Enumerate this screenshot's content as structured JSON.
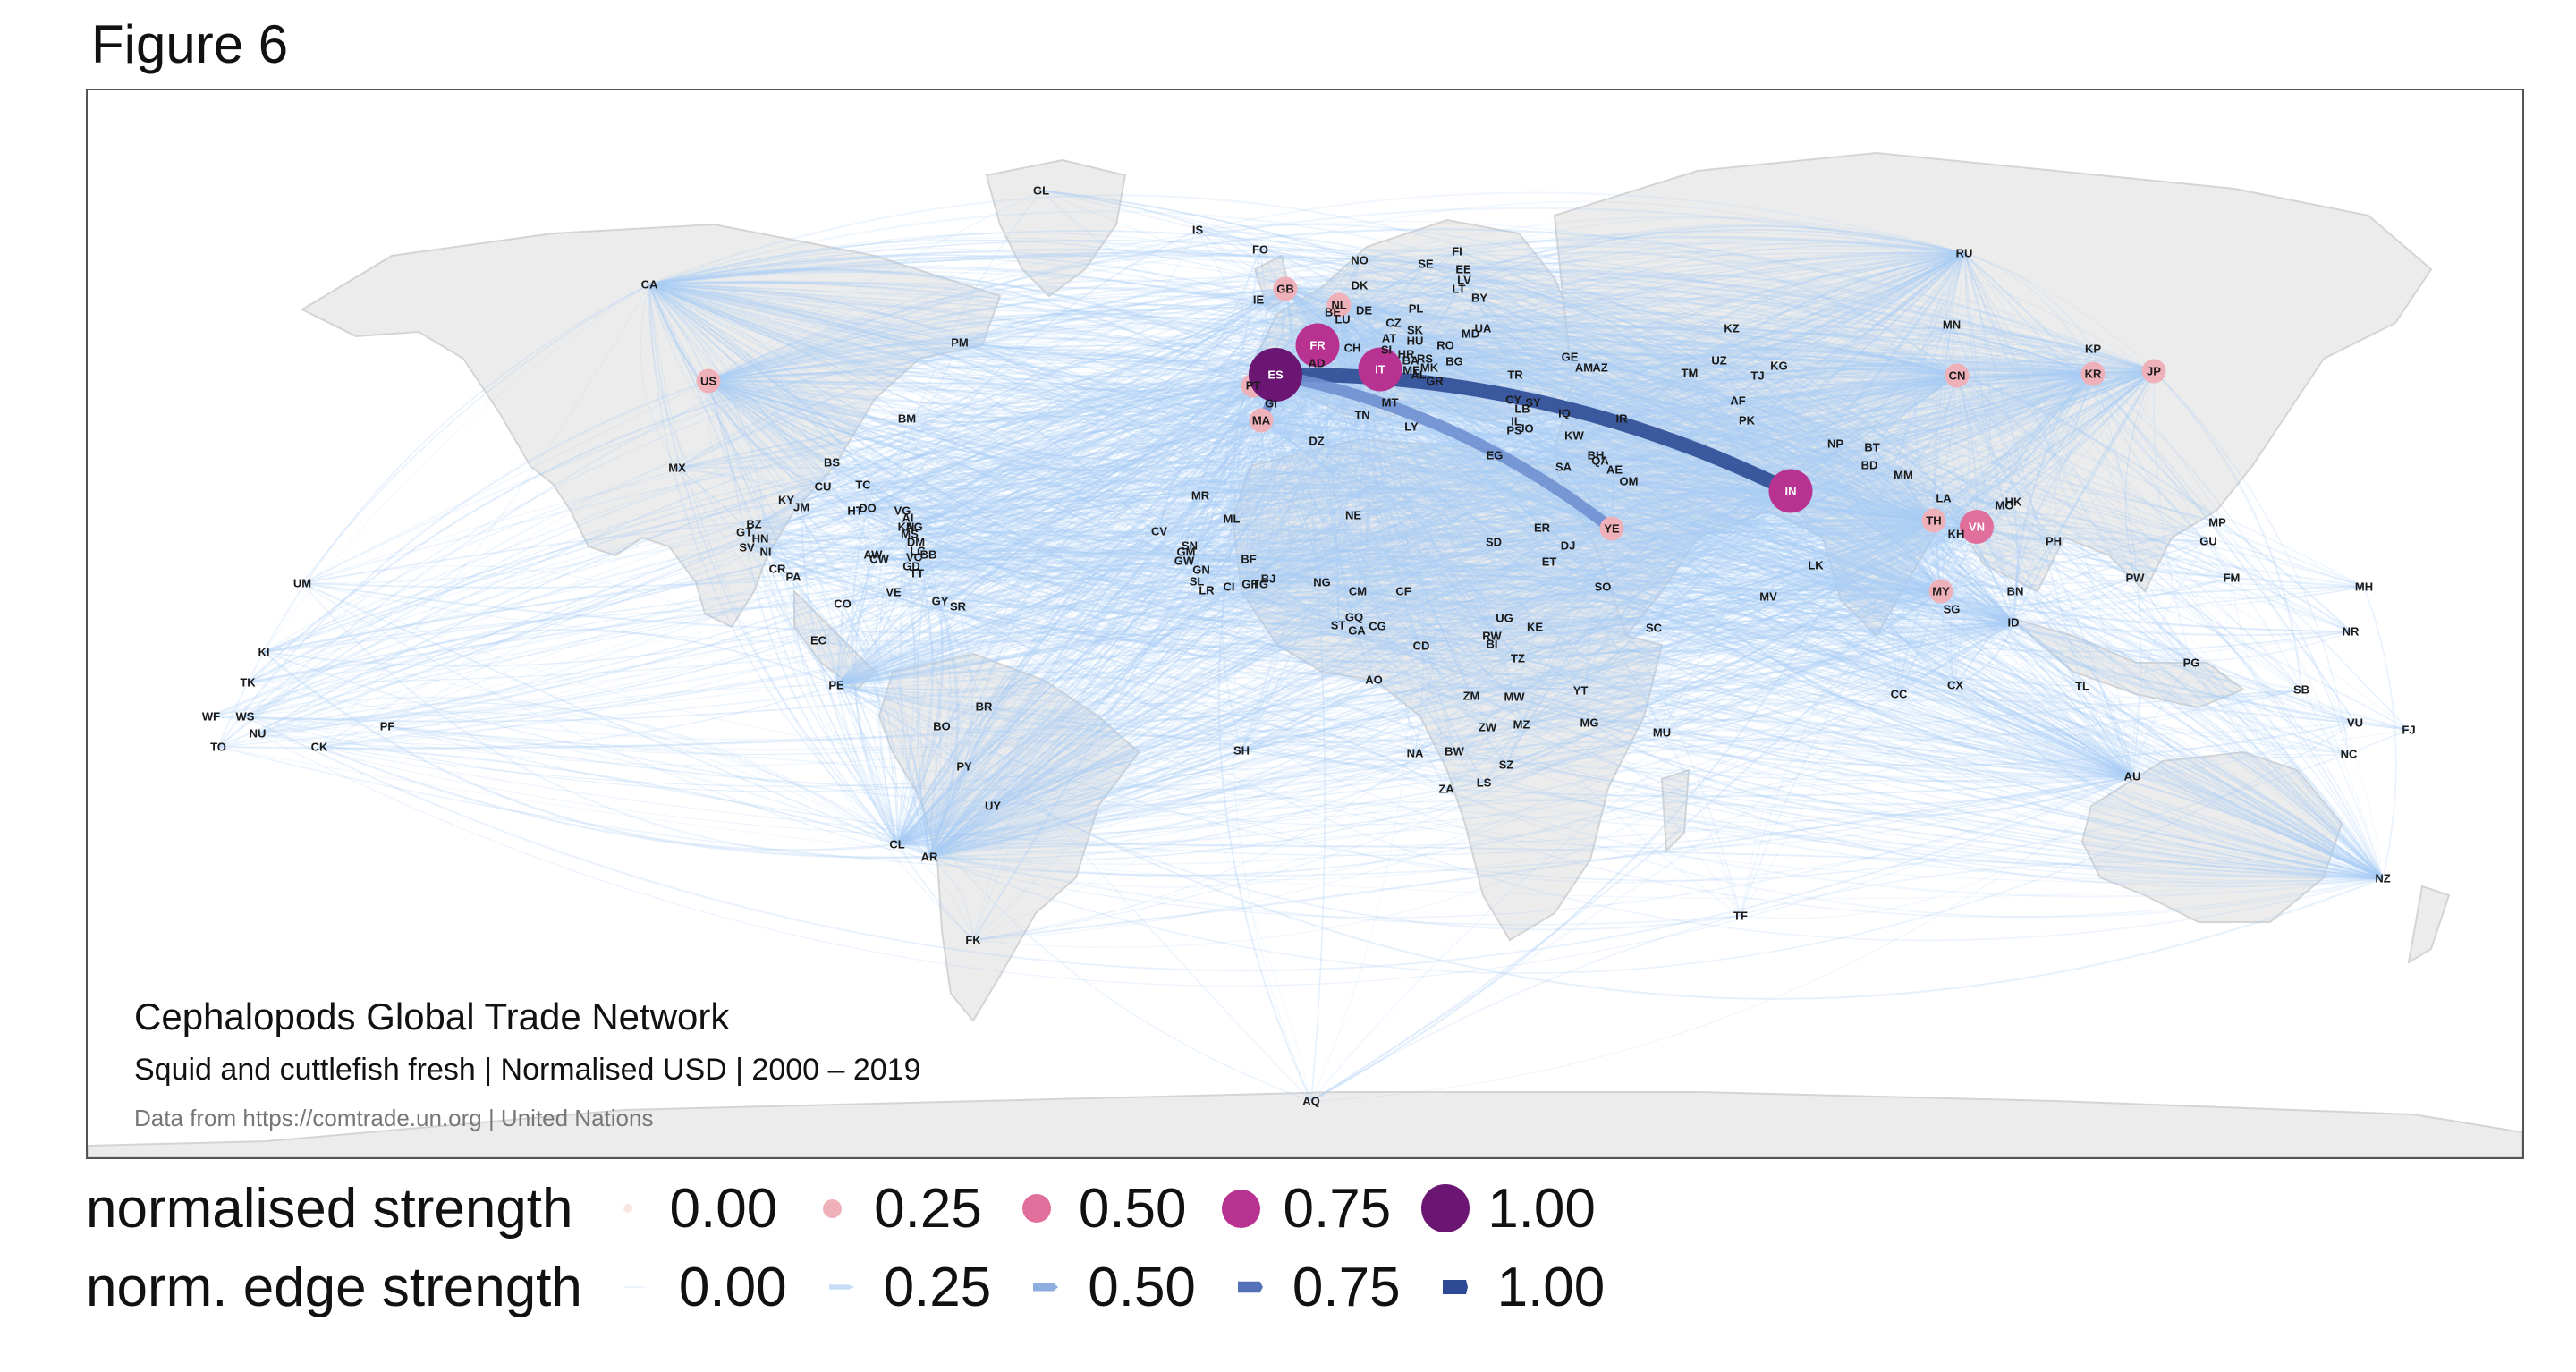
{
  "figure_label": "Figure 6",
  "map": {
    "title": "Cephalopods Global Trade Network",
    "subtitle": "Squid and cuttlefish fresh | Normalised USD | 2000 – 2019",
    "source": "Data from https://comtrade.un.org | United Nations"
  },
  "colors": {
    "edge_light": "#a9cdf6",
    "edge_strong": "#2c4a94",
    "node_0": "#fbe7e0",
    "node_025": "#efb1b9",
    "node_050": "#e06f9c",
    "node_075": "#b83391",
    "node_100": "#6a1672"
  },
  "legend": {
    "node_title": "normalised strength",
    "edge_title": "norm. edge strength",
    "node_keys": [
      {
        "label": "0.00",
        "value": 0.0,
        "color": "#fbe7e0"
      },
      {
        "label": "0.25",
        "value": 0.25,
        "color": "#efb1b9"
      },
      {
        "label": "0.50",
        "value": 0.5,
        "color": "#e06f9c"
      },
      {
        "label": "0.75",
        "value": 0.75,
        "color": "#b83391"
      },
      {
        "label": "1.00",
        "value": 1.0,
        "color": "#6a1672"
      }
    ],
    "edge_keys": [
      {
        "label": "0.00",
        "value": 0.0,
        "color": "#eef5fd"
      },
      {
        "label": "0.25",
        "value": 0.25,
        "color": "#c6ddf5"
      },
      {
        "label": "0.50",
        "value": 0.5,
        "color": "#8eaee0"
      },
      {
        "label": "0.75",
        "value": 0.75,
        "color": "#5470b6"
      },
      {
        "label": "1.00",
        "value": 1.0,
        "color": "#2c4a94"
      }
    ]
  },
  "highlighted_nodes": [
    {
      "code": "ES",
      "strength": 1.0
    },
    {
      "code": "IN",
      "strength": 0.75
    },
    {
      "code": "IT",
      "strength": 0.75
    },
    {
      "code": "FR",
      "strength": 0.75
    },
    {
      "code": "VN",
      "strength": 0.5
    },
    {
      "code": "TH",
      "strength": 0.25
    },
    {
      "code": "CN",
      "strength": 0.25
    },
    {
      "code": "JP",
      "strength": 0.25
    },
    {
      "code": "YE",
      "strength": 0.25
    },
    {
      "code": "US",
      "strength": 0.25
    },
    {
      "code": "PT",
      "strength": 0.25
    },
    {
      "code": "MA",
      "strength": 0.25
    },
    {
      "code": "GB",
      "strength": 0.25
    },
    {
      "code": "MY",
      "strength": 0.25
    },
    {
      "code": "NL",
      "strength": 0.25
    },
    {
      "code": "KR",
      "strength": 0.25
    }
  ],
  "strong_edges": [
    {
      "from": "IN",
      "to": "ES",
      "strength": 1.0
    },
    {
      "from": "YE",
      "to": "ES",
      "strength": 0.75
    },
    {
      "from": "MA",
      "to": "ES",
      "strength": 0.5
    }
  ],
  "country_codes": [
    "GL",
    "IS",
    "FO",
    "NO",
    "FI",
    "SE",
    "EE",
    "LV",
    "LT",
    "BY",
    "DK",
    "GB",
    "NL",
    "BE",
    "LU",
    "DE",
    "PL",
    "CZ",
    "SK",
    "AT",
    "HU",
    "RO",
    "MD",
    "UA",
    "IE",
    "FR",
    "CH",
    "SI",
    "HR",
    "BA",
    "RS",
    "ME",
    "AL",
    "MK",
    "BG",
    "GR",
    "IT",
    "AD",
    "ES",
    "PT",
    "GI",
    "MA",
    "MT",
    "TN",
    "LY",
    "DZ",
    "CY",
    "LB",
    "SY",
    "IL",
    "PS",
    "JO",
    "IQ",
    "IR",
    "KW",
    "BH",
    "QA",
    "SA",
    "AE",
    "OM",
    "YE",
    "ER",
    "DJ",
    "ET",
    "SO",
    "EG",
    "SD",
    "TR",
    "GE",
    "AM",
    "AZ",
    "KZ",
    "UZ",
    "TM",
    "KG",
    "TJ",
    "AF",
    "PK",
    "IN",
    "NP",
    "BT",
    "BD",
    "MM",
    "LK",
    "MV",
    "CN",
    "MN",
    "RU",
    "KP",
    "KR",
    "JP",
    "TH",
    "LA",
    "KH",
    "VN",
    "HK",
    "MO",
    "PH",
    "MY",
    "SG",
    "BN",
    "ID",
    "TL",
    "PG",
    "AU",
    "NZ",
    "NC",
    "VU",
    "FJ",
    "SB",
    "NR",
    "MH",
    "MP",
    "GU",
    "PW",
    "FM",
    "KI",
    "UM",
    "TK",
    "WF",
    "WS",
    "TO",
    "NU",
    "CK",
    "PF",
    "CA",
    "US",
    "MX",
    "PM",
    "BM",
    "BS",
    "CU",
    "KY",
    "JM",
    "HT",
    "DO",
    "TC",
    "VG",
    "AI",
    "AG",
    "KN",
    "MS",
    "DM",
    "LC",
    "VC",
    "GD",
    "BB",
    "TT",
    "AW",
    "CW",
    "BZ",
    "GT",
    "HN",
    "SV",
    "NI",
    "CR",
    "PA",
    "CO",
    "VE",
    "GY",
    "SR",
    "EC",
    "PE",
    "BO",
    "BR",
    "PY",
    "UY",
    "CL",
    "AR",
    "FK",
    "CV",
    "SN",
    "GM",
    "GW",
    "GN",
    "SL",
    "LR",
    "CI",
    "GH",
    "TG",
    "BJ",
    "BF",
    "ML",
    "MR",
    "NE",
    "NG",
    "CM",
    "CF",
    "GQ",
    "GA",
    "CG",
    "ST",
    "AO",
    "CD",
    "UG",
    "KE",
    "RW",
    "BI",
    "TZ",
    "ZM",
    "MW",
    "MZ",
    "ZW",
    "NA",
    "BW",
    "ZA",
    "LS",
    "SZ",
    "MG",
    "YT",
    "MU",
    "SC",
    "SH",
    "TF",
    "CC",
    "CX",
    "AQ"
  ]
}
